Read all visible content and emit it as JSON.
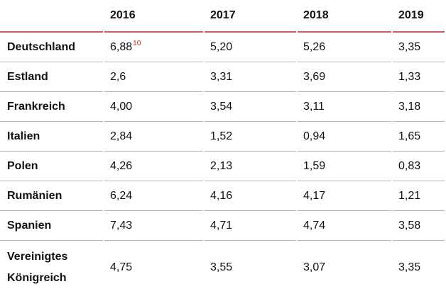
{
  "colors": {
    "header_rule": "#c85c5c",
    "row_rule": "#b3b3b3",
    "footnote_marker": "#cc2222",
    "text": "#111111",
    "background": "#ffffff"
  },
  "table": {
    "columns": [
      "",
      "2016",
      "2017",
      "2018",
      "2019"
    ],
    "rows": [
      {
        "label": "Deutschland",
        "values": [
          "6,88",
          "5,20",
          "5,26",
          "3,35"
        ],
        "footnote": "10"
      },
      {
        "label": "Estland",
        "values": [
          "2,6",
          "3,31",
          "3,69",
          "1,33"
        ]
      },
      {
        "label": "Frankreich",
        "values": [
          "4,00",
          "3,54",
          "3,11",
          "3,18"
        ]
      },
      {
        "label": "Italien",
        "values": [
          "2,84",
          "1,52",
          "0,94",
          "1,65"
        ]
      },
      {
        "label": "Polen",
        "values": [
          "4,26",
          "2,13",
          "1,59",
          "0,83"
        ]
      },
      {
        "label": "Rumänien",
        "values": [
          "6,24",
          "4,16",
          "4,17",
          "1,21"
        ]
      },
      {
        "label": "Spanien",
        "values": [
          "7,43",
          "4,71",
          "4,74",
          "3,58"
        ]
      },
      {
        "label": "Vereinigtes Königreich",
        "values": [
          "4,75",
          "3,55",
          "3,07",
          "3,35"
        ]
      }
    ]
  },
  "chart_data": {
    "type": "table",
    "categories": [
      "2016",
      "2017",
      "2018",
      "2019"
    ],
    "series": [
      {
        "name": "Deutschland",
        "values": [
          6.88,
          5.2,
          5.26,
          3.35
        ]
      },
      {
        "name": "Estland",
        "values": [
          2.6,
          3.31,
          3.69,
          1.33
        ]
      },
      {
        "name": "Frankreich",
        "values": [
          4.0,
          3.54,
          3.11,
          3.18
        ]
      },
      {
        "name": "Italien",
        "values": [
          2.84,
          1.52,
          0.94,
          1.65
        ]
      },
      {
        "name": "Polen",
        "values": [
          4.26,
          2.13,
          1.59,
          0.83
        ]
      },
      {
        "name": "Rumänien",
        "values": [
          6.24,
          4.16,
          4.17,
          1.21
        ]
      },
      {
        "name": "Spanien",
        "values": [
          7.43,
          4.71,
          4.74,
          3.58
        ]
      },
      {
        "name": "Vereinigtes Königreich",
        "values": [
          4.75,
          3.55,
          3.07,
          3.35
        ]
      }
    ],
    "title": "",
    "notes": "Deutschland 2016 value carries red superscript footnote marker 10; decimal comma formatting"
  }
}
